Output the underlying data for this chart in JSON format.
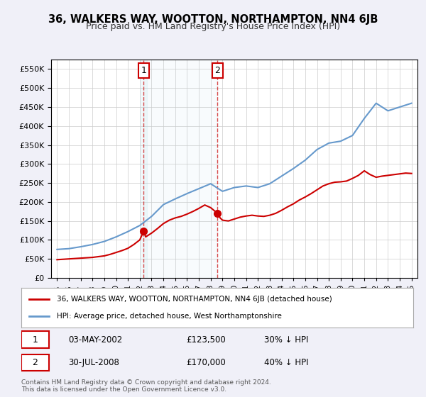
{
  "title": "36, WALKERS WAY, WOOTTON, NORTHAMPTON, NN4 6JB",
  "subtitle": "Price paid vs. HM Land Registry's House Price Index (HPI)",
  "bg_color": "#f0f0f8",
  "plot_bg_color": "#ffffff",
  "hpi_color": "#6699cc",
  "price_color": "#cc0000",
  "sale1": {
    "date": 2002.34,
    "price": 123500,
    "label": "1"
  },
  "sale2": {
    "date": 2008.58,
    "price": 170000,
    "label": "2"
  },
  "legend_line1": "36, WALKERS WAY, WOOTTON, NORTHAMPTON, NN4 6JB (detached house)",
  "legend_line2": "HPI: Average price, detached house, West Northamptonshire",
  "table_row1": [
    "1",
    "03-MAY-2002",
    "£123,500",
    "30% ↓ HPI"
  ],
  "table_row2": [
    "2",
    "30-JUL-2008",
    "£170,000",
    "40% ↓ HPI"
  ],
  "footer": "Contains HM Land Registry data © Crown copyright and database right 2024.\nThis data is licensed under the Open Government Licence v3.0.",
  "ylim": [
    0,
    575000
  ],
  "yticks": [
    0,
    50000,
    100000,
    150000,
    200000,
    250000,
    300000,
    350000,
    400000,
    450000,
    500000,
    550000
  ],
  "hpi_years": [
    1995,
    1996,
    1997,
    1998,
    1999,
    2000,
    2001,
    2002,
    2003,
    2004,
    2005,
    2006,
    2007,
    2008,
    2009,
    2010,
    2011,
    2012,
    2013,
    2014,
    2015,
    2016,
    2017,
    2018,
    2019,
    2020,
    2021,
    2022,
    2023,
    2024,
    2025
  ],
  "hpi_values": [
    75000,
    77000,
    82000,
    88000,
    96000,
    108000,
    122000,
    138000,
    162000,
    193000,
    208000,
    222000,
    235000,
    248000,
    228000,
    238000,
    242000,
    238000,
    248000,
    268000,
    288000,
    310000,
    338000,
    355000,
    360000,
    375000,
    420000,
    460000,
    440000,
    450000,
    460000
  ],
  "price_years": [
    1995.0,
    1995.5,
    1996.0,
    1996.5,
    1997.0,
    1997.5,
    1998.0,
    1998.5,
    1999.0,
    1999.5,
    2000.0,
    2000.5,
    2001.0,
    2001.5,
    2002.0,
    2002.34,
    2002.5,
    2003.0,
    2003.5,
    2004.0,
    2004.5,
    2005.0,
    2005.5,
    2006.0,
    2006.5,
    2007.0,
    2007.5,
    2008.0,
    2008.58,
    2008.8,
    2009.0,
    2009.5,
    2010.0,
    2010.5,
    2011.0,
    2011.5,
    2012.0,
    2012.5,
    2013.0,
    2013.5,
    2014.0,
    2014.5,
    2015.0,
    2015.5,
    2016.0,
    2016.5,
    2017.0,
    2017.5,
    2018.0,
    2018.5,
    2019.0,
    2019.5,
    2020.0,
    2020.5,
    2021.0,
    2021.5,
    2022.0,
    2022.5,
    2023.0,
    2023.5,
    2024.0,
    2024.5,
    2025.0
  ],
  "price_values": [
    48000,
    49000,
    50000,
    51000,
    52000,
    53000,
    54000,
    56000,
    58000,
    62000,
    67000,
    72000,
    78000,
    88000,
    100000,
    123500,
    108000,
    118000,
    130000,
    143000,
    152000,
    158000,
    162000,
    168000,
    175000,
    183000,
    192000,
    185000,
    170000,
    158000,
    152000,
    150000,
    155000,
    160000,
    163000,
    165000,
    163000,
    162000,
    165000,
    170000,
    178000,
    187000,
    195000,
    205000,
    213000,
    222000,
    232000,
    242000,
    248000,
    252000,
    253000,
    255000,
    262000,
    270000,
    282000,
    272000,
    265000,
    268000,
    270000,
    272000,
    274000,
    276000,
    275000
  ]
}
